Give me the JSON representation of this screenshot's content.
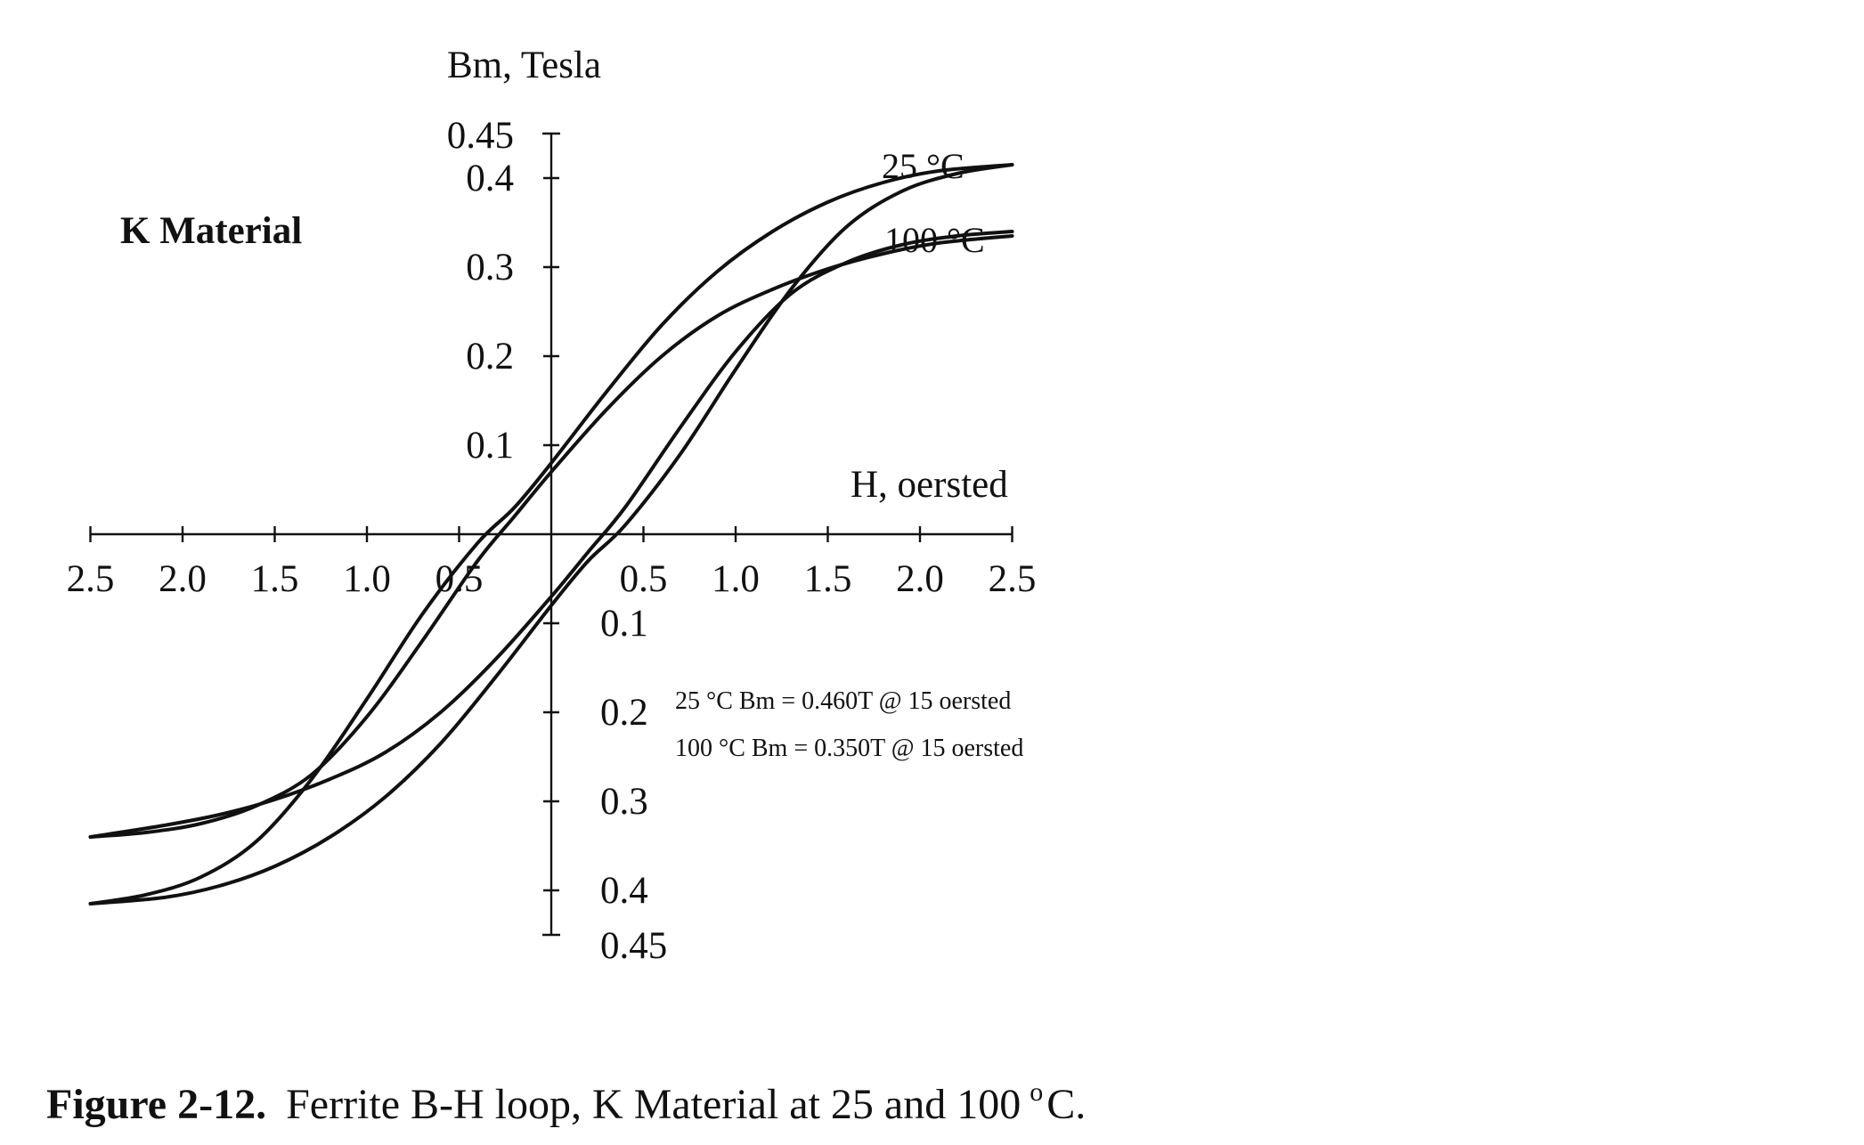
{
  "chart_data": {
    "type": "line",
    "material_label": "K Material",
    "ylabel": "Bm, Tesla",
    "xlabel": "H, oersted",
    "xlim": [
      -2.5,
      2.5
    ],
    "ylim": [
      -0.45,
      0.45
    ],
    "x_ticks": [
      {
        "value": -2.5,
        "label": "2.5"
      },
      {
        "value": -2.0,
        "label": "2.0"
      },
      {
        "value": -1.5,
        "label": "1.5"
      },
      {
        "value": -1.0,
        "label": "1.0"
      },
      {
        "value": -0.5,
        "label": "0.5"
      },
      {
        "value": 0.5,
        "label": "0.5"
      },
      {
        "value": 1.0,
        "label": "1.0"
      },
      {
        "value": 1.5,
        "label": "1.5"
      },
      {
        "value": 2.0,
        "label": "2.0"
      },
      {
        "value": 2.5,
        "label": "2.5"
      }
    ],
    "y_ticks": [
      {
        "value": 0.45,
        "label": "0.45"
      },
      {
        "value": 0.4,
        "label": "0.4"
      },
      {
        "value": 0.3,
        "label": "0.3"
      },
      {
        "value": 0.2,
        "label": "0.2"
      },
      {
        "value": 0.1,
        "label": "0.1"
      },
      {
        "value": -0.1,
        "label": "0.1"
      },
      {
        "value": -0.2,
        "label": "0.2"
      },
      {
        "value": -0.3,
        "label": "0.3"
      },
      {
        "value": -0.4,
        "label": "0.4"
      },
      {
        "value": -0.45,
        "label": "0.45"
      }
    ],
    "series": [
      {
        "name": "25 °C",
        "upper_branch": {
          "x": [
            -2.5,
            -2.2,
            -1.9,
            -1.6,
            -1.3,
            -1.0,
            -0.7,
            -0.4,
            -0.2,
            0.0,
            0.3,
            0.6,
            0.9,
            1.2,
            1.5,
            1.8,
            2.1,
            2.5
          ],
          "y": [
            -0.415,
            -0.405,
            -0.385,
            -0.345,
            -0.275,
            -0.185,
            -0.09,
            -0.01,
            0.03,
            0.08,
            0.16,
            0.235,
            0.295,
            0.34,
            0.373,
            0.395,
            0.408,
            0.415
          ]
        },
        "lower_branch": {
          "x": [
            -2.5,
            -2.1,
            -1.8,
            -1.5,
            -1.2,
            -0.9,
            -0.6,
            -0.3,
            0.0,
            0.2,
            0.4,
            0.7,
            1.0,
            1.3,
            1.6,
            1.9,
            2.2,
            2.5
          ],
          "y": [
            -0.415,
            -0.408,
            -0.395,
            -0.373,
            -0.34,
            -0.295,
            -0.235,
            -0.16,
            -0.08,
            -0.03,
            0.01,
            0.09,
            0.185,
            0.275,
            0.345,
            0.385,
            0.405,
            0.415
          ]
        }
      },
      {
        "name": "100 °C",
        "upper_branch": {
          "x": [
            -2.5,
            -2.2,
            -1.9,
            -1.6,
            -1.3,
            -1.0,
            -0.7,
            -0.4,
            -0.2,
            0.0,
            0.3,
            0.6,
            0.9,
            1.2,
            1.5,
            1.8,
            2.1,
            2.5
          ],
          "y": [
            -0.34,
            -0.335,
            -0.325,
            -0.305,
            -0.27,
            -0.205,
            -0.12,
            -0.03,
            0.02,
            0.07,
            0.14,
            0.2,
            0.245,
            0.275,
            0.298,
            0.315,
            0.327,
            0.335
          ]
        },
        "lower_branch": {
          "x": [
            -2.5,
            -2.1,
            -1.8,
            -1.5,
            -1.2,
            -0.9,
            -0.6,
            -0.3,
            0.0,
            0.2,
            0.4,
            0.7,
            1.0,
            1.3,
            1.6,
            1.9,
            2.2,
            2.5
          ],
          "y": [
            -0.34,
            -0.327,
            -0.315,
            -0.298,
            -0.275,
            -0.245,
            -0.2,
            -0.14,
            -0.07,
            -0.02,
            0.03,
            0.12,
            0.205,
            0.27,
            0.305,
            0.325,
            0.335,
            0.34
          ]
        }
      }
    ],
    "notes": [
      "25 °C    Bm = 0.460T @ 15 oersted",
      "100 °C Bm = 0.350T @ 15 oersted"
    ]
  },
  "caption": {
    "number": "Figure 2-12.",
    "text": "Ferrite B-H loop, K Material at 25 and 100",
    "degree": "o",
    "unit": "C."
  }
}
